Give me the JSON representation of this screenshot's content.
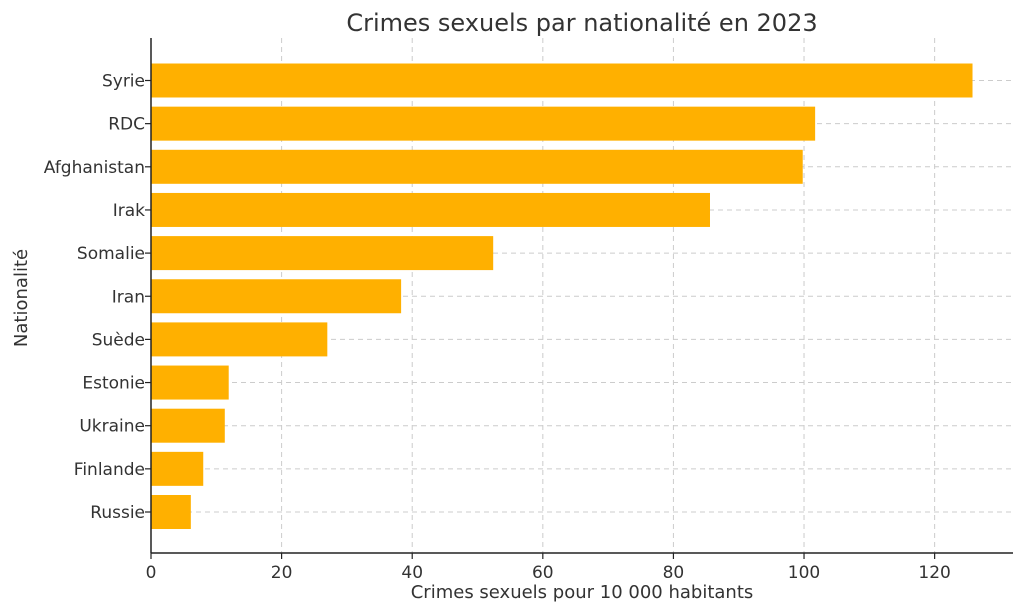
{
  "chart_data": {
    "type": "bar",
    "orientation": "horizontal",
    "title": "Crimes sexuels par nationalité en 2023",
    "xlabel": "Crimes sexuels pour 10 000 habitants",
    "ylabel": "Nationalité",
    "xlim": [
      0,
      132
    ],
    "xticks": [
      0,
      20,
      40,
      60,
      80,
      100,
      120
    ],
    "grid": true,
    "categories": [
      "Syrie",
      "RDC",
      "Afghanistan",
      "Irak",
      "Somalie",
      "Iran",
      "Suède",
      "Estonie",
      "Ukraine",
      "Finlande",
      "Russie"
    ],
    "values": [
      125.8,
      101.7,
      99.8,
      85.6,
      52.4,
      38.3,
      27.0,
      11.9,
      11.3,
      8.0,
      6.1
    ],
    "bar_color": "#FFB000"
  }
}
